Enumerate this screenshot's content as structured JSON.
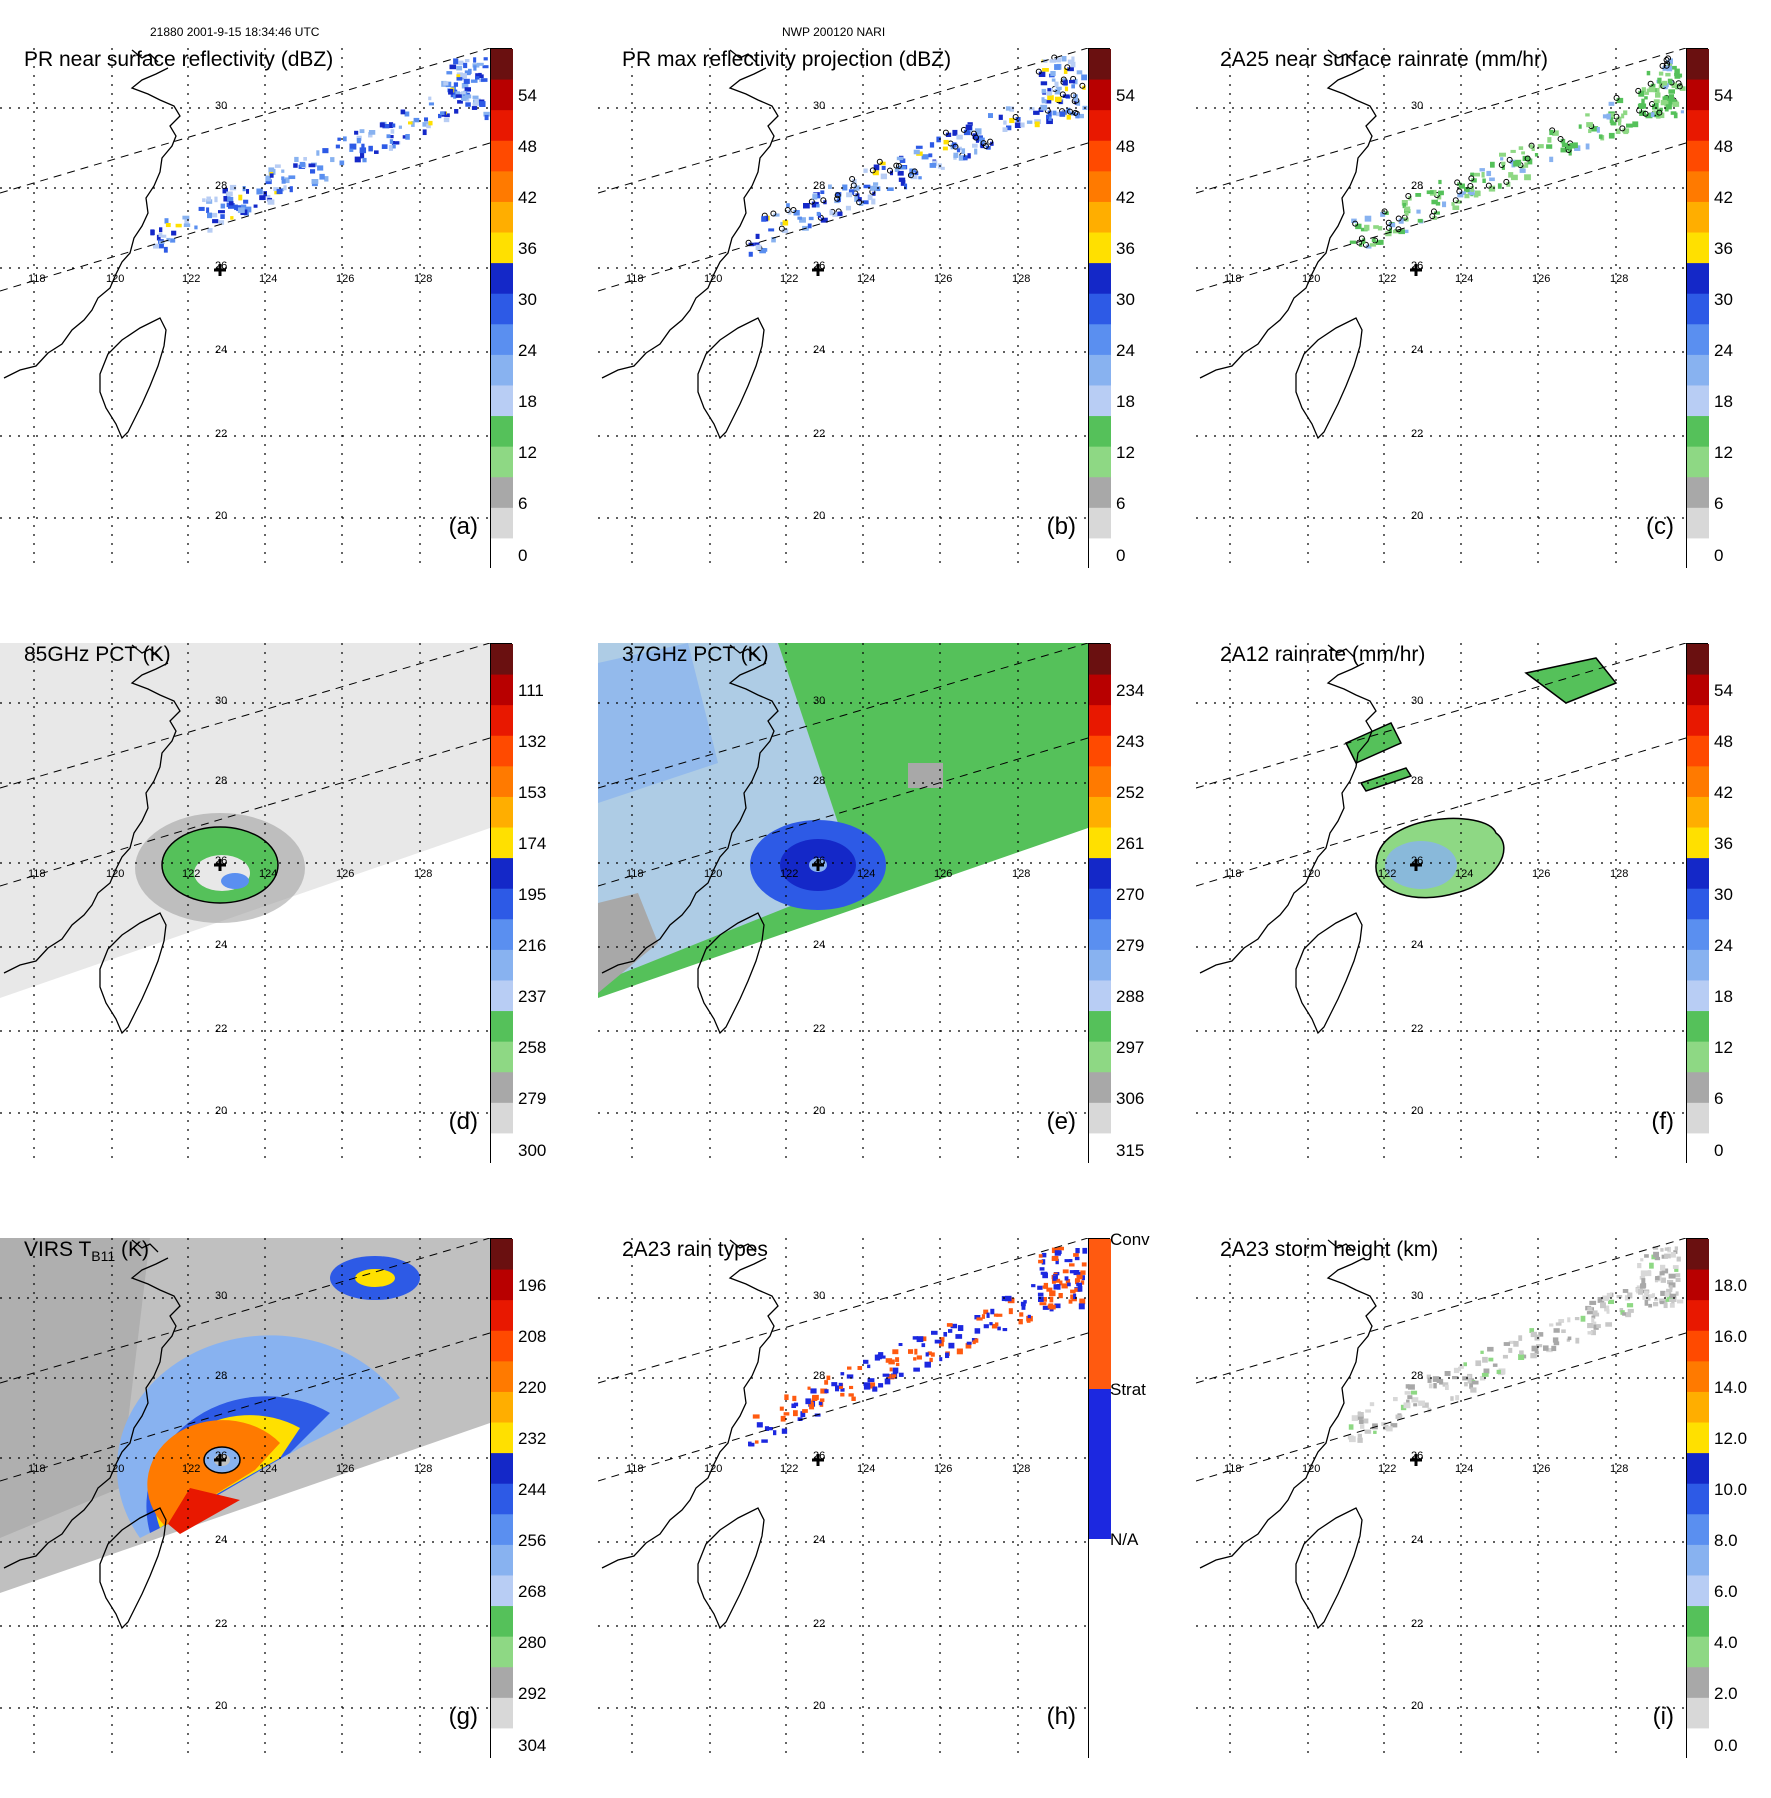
{
  "header": {
    "left": "21880 2001-9-15 18:34:46 UTC",
    "center": "NWP 200120 NARI"
  },
  "longitudes": [
    "118",
    "120",
    "122",
    "124",
    "126",
    "128"
  ],
  "latitudes": [
    "30",
    "28",
    "26",
    "24",
    "22",
    "20"
  ],
  "panels": [
    {
      "id": "a",
      "title": "PR near surface reflectivity (dBZ)",
      "label": "(a)",
      "scale": "dbz",
      "layer": "pr",
      "ticks": [
        "54",
        "48",
        "42",
        "36",
        "30",
        "24",
        "18",
        "12",
        "6",
        "0"
      ]
    },
    {
      "id": "b",
      "title": "PR max reflectivity projection (dBZ)",
      "label": "(b)",
      "scale": "dbz",
      "layer": "prmax",
      "ticks": [
        "54",
        "48",
        "42",
        "36",
        "30",
        "24",
        "18",
        "12",
        "6",
        "0"
      ]
    },
    {
      "id": "c",
      "title": "2A25 near surface rainrate (mm/hr)",
      "label": "(c)",
      "scale": "rain",
      "layer": "rain25",
      "ticks": [
        "54",
        "48",
        "42",
        "36",
        "30",
        "24",
        "18",
        "12",
        "6",
        "0"
      ]
    },
    {
      "id": "d",
      "title": "85GHz PCT (K)",
      "label": "(d)",
      "scale": "pct85",
      "layer": "pct85",
      "ticks": [
        "111",
        "132",
        "153",
        "174",
        "195",
        "216",
        "237",
        "258",
        "279",
        "300"
      ]
    },
    {
      "id": "e",
      "title": "37GHz PCT (K)",
      "label": "(e)",
      "scale": "pct37",
      "layer": "pct37",
      "ticks": [
        "234",
        "243",
        "252",
        "261",
        "270",
        "279",
        "288",
        "297",
        "306",
        "315"
      ]
    },
    {
      "id": "f",
      "title": "2A12 rainrate (mm/hr)",
      "label": "(f)",
      "scale": "rain",
      "layer": "rain12",
      "ticks": [
        "54",
        "48",
        "42",
        "36",
        "30",
        "24",
        "18",
        "12",
        "6",
        "0"
      ]
    },
    {
      "id": "g",
      "title_main": "VIRS T",
      "title_sub": "B11",
      "title_end": " (K)",
      "label": "(g)",
      "scale": "virs",
      "layer": "virs",
      "ticks": [
        "196",
        "208",
        "220",
        "232",
        "244",
        "256",
        "268",
        "280",
        "292",
        "304"
      ]
    },
    {
      "id": "h",
      "title": "2A23 rain types",
      "label": "(h)",
      "scale": "types",
      "layer": "types",
      "ticks": [
        "Conv",
        "Strat",
        "N/A"
      ]
    },
    {
      "id": "i",
      "title": "2A23 storm height (km)",
      "label": "(i)",
      "scale": "height",
      "layer": "height",
      "ticks": [
        "18.0",
        "16.0",
        "14.0",
        "12.0",
        "10.0",
        "8.0",
        "6.0",
        "4.0",
        "2.0",
        "0.0"
      ]
    }
  ],
  "colors": {
    "dbz": [
      "#ffffff",
      "#d8d8d8",
      "#a8a8a8",
      "#8ed884",
      "#55c15a",
      "#b8cdf4",
      "#88b2f0",
      "#5a8ff0",
      "#2d5ae6",
      "#1428c8",
      "#ffe000",
      "#ffae00",
      "#ff7a00",
      "#ff4a00",
      "#e81800",
      "#b80000",
      "#6a1010"
    ],
    "pct": [
      "#6a1010",
      "#b80000",
      "#e81800",
      "#ff4a00",
      "#ff7a00",
      "#ffae00",
      "#ffe000",
      "#1428c8",
      "#2d5ae6",
      "#5a8ff0",
      "#88b2f0",
      "#b8cdf4",
      "#55c15a",
      "#8ed884",
      "#a8a8a8",
      "#d8d8d8",
      "#ffffff"
    ],
    "types": [
      "#ff5a10",
      "#1c28e0",
      "#ffffff"
    ]
  }
}
